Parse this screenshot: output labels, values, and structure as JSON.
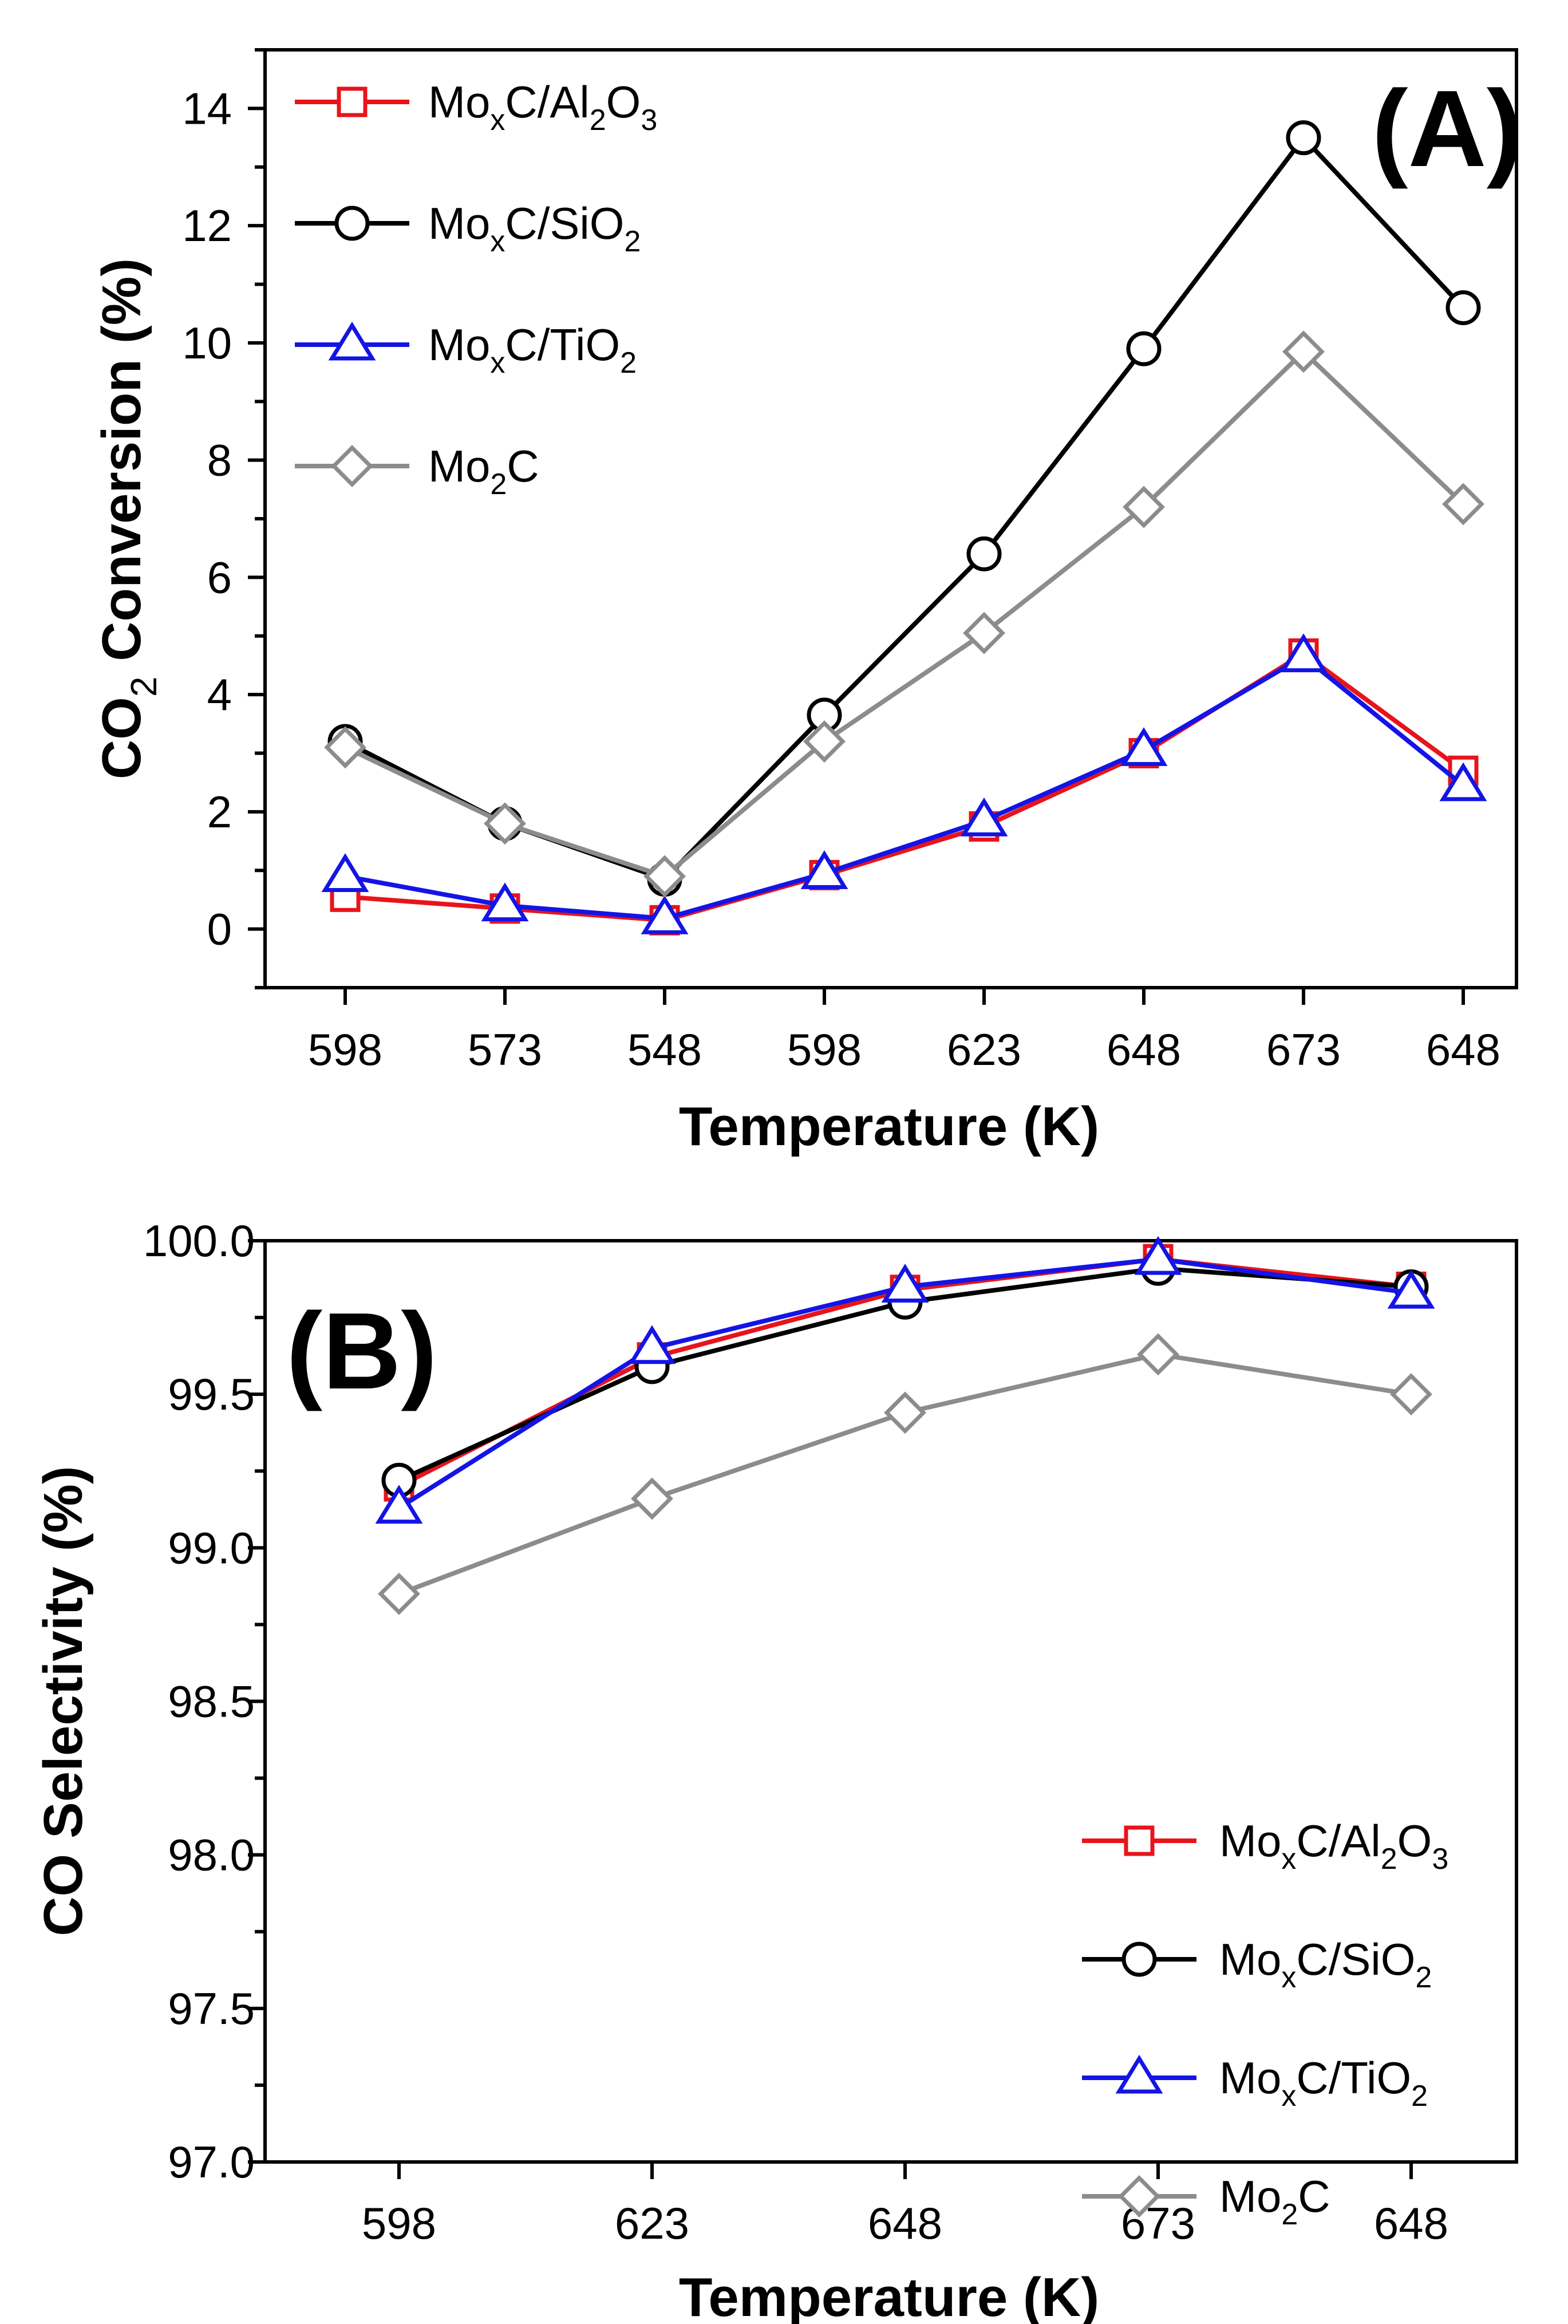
{
  "colors": {
    "red": "#e8141b",
    "black": "#000000",
    "blue": "#1414e6",
    "gray": "#8c8c8c"
  },
  "chart_data": [
    {
      "id": "A",
      "type": "line",
      "panel_label": "(A)",
      "xlabel": "Temperature (K)",
      "ylabel": {
        "parts": [
          "CO",
          "2",
          " Conversion (%)"
        ]
      },
      "categories": [
        "598",
        "573",
        "548",
        "598",
        "623",
        "648",
        "673",
        "648"
      ],
      "ylim": [
        -1,
        15
      ],
      "yticks": [
        0,
        2,
        4,
        6,
        8,
        10,
        12,
        14
      ],
      "ytick_labels": [
        "0",
        "2",
        "4",
        "6",
        "8",
        "10",
        "12",
        "14"
      ],
      "grid": false,
      "legend_position": "top-left",
      "series": [
        {
          "name": "MoxC/Al2O3",
          "label_parts": [
            [
              "Mo",
              ""
            ],
            [
              "x",
              "sub"
            ],
            [
              "C/Al",
              ""
            ],
            [
              "2",
              "sub"
            ],
            [
              "O",
              ""
            ],
            [
              "3",
              "sub"
            ]
          ],
          "color": "red",
          "marker": "square",
          "values": [
            0.55,
            0.35,
            0.15,
            0.92,
            1.75,
            3.0,
            4.7,
            2.7
          ]
        },
        {
          "name": "MoxC/SiO2",
          "label_parts": [
            [
              "Mo",
              ""
            ],
            [
              "x",
              "sub"
            ],
            [
              "C/SiO",
              ""
            ],
            [
              "2",
              "sub"
            ]
          ],
          "color": "black",
          "marker": "circle",
          "values": [
            3.2,
            1.8,
            0.85,
            3.65,
            6.4,
            9.9,
            13.5,
            10.6
          ]
        },
        {
          "name": "MoxC/TiO2",
          "label_parts": [
            [
              "Mo",
              ""
            ],
            [
              "x",
              "sub"
            ],
            [
              "C/TiO",
              ""
            ],
            [
              "2",
              "sub"
            ]
          ],
          "color": "blue",
          "marker": "triangle",
          "values": [
            0.9,
            0.4,
            0.18,
            0.95,
            1.85,
            3.05,
            4.65,
            2.45
          ]
        },
        {
          "name": "Mo2C",
          "label_parts": [
            [
              "Mo",
              ""
            ],
            [
              "2",
              "sub"
            ],
            [
              "C",
              ""
            ]
          ],
          "color": "gray",
          "marker": "diamond",
          "values": [
            3.1,
            1.8,
            0.9,
            3.2,
            5.05,
            7.2,
            9.85,
            7.25
          ]
        }
      ]
    },
    {
      "id": "B",
      "type": "line",
      "panel_label": "(B)",
      "xlabel": "Temperature (K)",
      "ylabel": {
        "parts": [
          "CO Selectivity (%)"
        ]
      },
      "categories": [
        "598",
        "623",
        "648",
        "673",
        "648"
      ],
      "ylim": [
        97.0,
        100.0
      ],
      "yticks": [
        97.0,
        97.5,
        98.0,
        98.5,
        99.0,
        99.5,
        100.0
      ],
      "ytick_labels": [
        "97.0",
        "97.5",
        "98.0",
        "98.5",
        "99.0",
        "99.5",
        "100.0"
      ],
      "grid": false,
      "legend_position": "bottom-right",
      "series": [
        {
          "name": "MoxC/Al2O3",
          "label_parts": [
            [
              "Mo",
              ""
            ],
            [
              "x",
              "sub"
            ],
            [
              "C/Al",
              ""
            ],
            [
              "2",
              "sub"
            ],
            [
              "O",
              ""
            ],
            [
              "3",
              "sub"
            ]
          ],
          "color": "red",
          "marker": "square",
          "values": [
            99.2,
            99.62,
            99.84,
            99.94,
            99.85
          ]
        },
        {
          "name": "MoxC/SiO2",
          "label_parts": [
            [
              "Mo",
              ""
            ],
            [
              "x",
              "sub"
            ],
            [
              "C/SiO",
              ""
            ],
            [
              "2",
              "sub"
            ]
          ],
          "color": "black",
          "marker": "circle",
          "values": [
            99.22,
            99.59,
            99.8,
            99.91,
            99.85
          ]
        },
        {
          "name": "MoxC/TiO2",
          "label_parts": [
            [
              "Mo",
              ""
            ],
            [
              "x",
              "sub"
            ],
            [
              "C/TiO",
              ""
            ],
            [
              "2",
              "sub"
            ]
          ],
          "color": "blue",
          "marker": "triangle",
          "values": [
            99.13,
            99.65,
            99.85,
            99.94,
            99.83
          ]
        },
        {
          "name": "Mo2C",
          "label_parts": [
            [
              "Mo",
              ""
            ],
            [
              "2",
              "sub"
            ],
            [
              "C",
              ""
            ]
          ],
          "color": "gray",
          "marker": "diamond",
          "values": [
            98.85,
            99.16,
            99.44,
            99.63,
            99.5
          ]
        }
      ]
    }
  ]
}
